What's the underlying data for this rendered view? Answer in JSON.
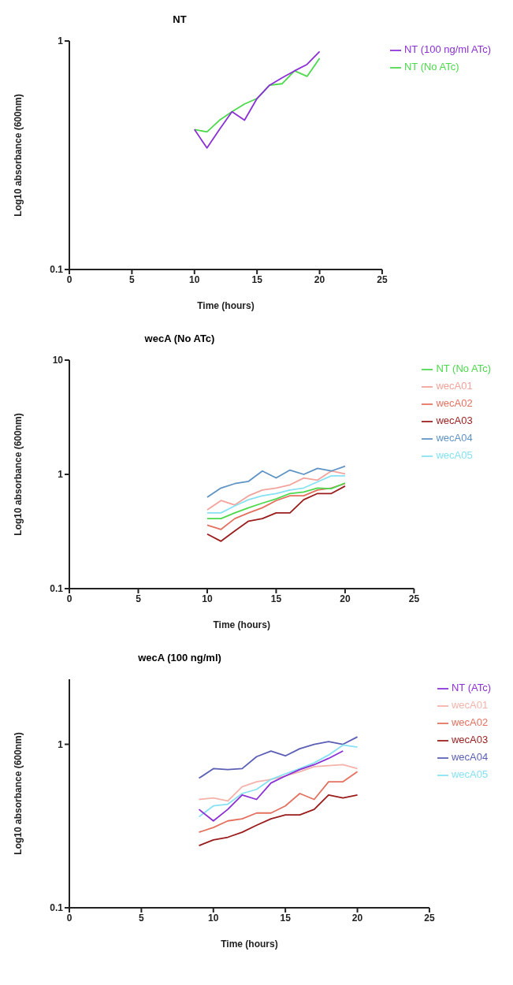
{
  "chart_data": [
    {
      "type": "line",
      "title": "NT",
      "xlabel": "Time (hours)",
      "ylabel": "Log10 absorbance (600nm)",
      "log": true,
      "grid": false,
      "legend": "top right",
      "x": [
        10,
        11,
        12,
        13,
        14,
        15,
        16,
        17,
        18,
        19,
        20
      ],
      "xlim": [
        0,
        25
      ],
      "xticks": [
        0,
        5,
        10,
        15,
        20,
        25
      ],
      "ylim": [
        0.1,
        1
      ],
      "yticks": [
        0.1,
        1
      ],
      "series": [
        {
          "name": "NT (No ATc)",
          "color": "#4cd94c",
          "values": [
            0.41,
            0.4,
            0.45,
            0.49,
            0.53,
            0.56,
            0.64,
            0.65,
            0.74,
            0.7,
            0.84
          ]
        },
        {
          "name": "NT (100 ng/ml ATc)",
          "color": "#8b2fd6",
          "values": [
            0.41,
            0.34,
            0.41,
            0.49,
            0.45,
            0.56,
            0.64,
            0.69,
            0.74,
            0.79,
            0.9
          ]
        }
      ]
    },
    {
      "type": "line",
      "title": "wecA (No ATc)",
      "xlabel": "Time (hours)",
      "ylabel": "Log10 absorbance (600nm)",
      "log": true,
      "grid": false,
      "legend": "top right",
      "x": [
        10,
        11,
        12,
        13,
        14,
        15,
        16,
        17,
        18,
        19,
        20
      ],
      "xlim": [
        0,
        25
      ],
      "xticks": [
        0,
        5,
        10,
        15,
        20,
        25
      ],
      "ylim": [
        0.1,
        10
      ],
      "yticks": [
        0.1,
        1,
        10
      ],
      "series": [
        {
          "name": "wecA01",
          "color": "#f2a39b",
          "values": [
            0.49,
            0.59,
            0.54,
            0.65,
            0.73,
            0.76,
            0.81,
            0.93,
            0.89,
            1.07,
            1.01
          ]
        },
        {
          "name": "wecA02",
          "color": "#e4705f",
          "values": [
            0.36,
            0.33,
            0.41,
            0.46,
            0.51,
            0.59,
            0.65,
            0.65,
            0.73,
            0.76,
            0.83
          ]
        },
        {
          "name": "wecA03",
          "color": "#9a1c1c",
          "values": [
            0.3,
            0.26,
            0.32,
            0.39,
            0.41,
            0.46,
            0.46,
            0.6,
            0.68,
            0.68,
            0.79
          ]
        },
        {
          "name": "wecA04",
          "color": "#5f93c4",
          "values": [
            0.63,
            0.76,
            0.83,
            0.87,
            1.07,
            0.93,
            1.09,
            1.0,
            1.13,
            1.07,
            1.18
          ]
        },
        {
          "name": "wecA05",
          "color": "#86e2f2",
          "values": [
            0.46,
            0.46,
            0.53,
            0.6,
            0.65,
            0.68,
            0.73,
            0.76,
            0.86,
            0.97,
            0.97
          ]
        },
        {
          "name": "NT (No ATc)",
          "color": "#4cd94c",
          "values": [
            0.41,
            0.41,
            0.46,
            0.51,
            0.56,
            0.61,
            0.68,
            0.7,
            0.76,
            0.75,
            0.84
          ]
        }
      ]
    },
    {
      "type": "line",
      "title": "wecA (100 ng/ml)",
      "xlabel": "Time (hours)",
      "ylabel": "Log10 absorbance (600nm)",
      "log": true,
      "grid": false,
      "legend": "top right",
      "x": [
        9,
        10,
        11,
        12,
        13,
        14,
        15,
        16,
        17,
        18,
        19,
        20
      ],
      "xlim": [
        0,
        25
      ],
      "xticks": [
        0,
        5,
        10,
        15,
        20,
        25
      ],
      "ylim": [
        0.1,
        2.5
      ],
      "yticks": [
        0.1,
        1
      ],
      "series": [
        {
          "name": "wecA01",
          "color": "#f4b3aa",
          "values": [
            0.46,
            0.47,
            0.45,
            0.55,
            0.59,
            0.61,
            0.64,
            0.68,
            0.73,
            0.74,
            0.75,
            0.71
          ]
        },
        {
          "name": "wecA02",
          "color": "#e4705f",
          "values": [
            0.29,
            0.31,
            0.34,
            0.35,
            0.38,
            0.38,
            0.42,
            0.5,
            0.46,
            0.59,
            0.59,
            0.68
          ]
        },
        {
          "name": "wecA03",
          "color": "#9a1c1c",
          "values": [
            0.24,
            0.26,
            0.27,
            0.29,
            0.32,
            0.35,
            0.37,
            0.37,
            0.4,
            0.49,
            0.47,
            0.49
          ]
        },
        {
          "name": "wecA04",
          "color": "#5a5fb5",
          "values": [
            0.62,
            0.71,
            0.7,
            0.71,
            0.84,
            0.91,
            0.85,
            0.94,
            1.0,
            1.04,
            1.0,
            1.11
          ]
        },
        {
          "name": "wecA05",
          "color": "#86e2f2",
          "values": [
            0.36,
            0.42,
            0.43,
            0.5,
            0.53,
            0.61,
            0.66,
            0.71,
            0.77,
            0.86,
            0.99,
            0.96
          ]
        },
        {
          "name": "NT (ATc)",
          "color": "#8b2fd6",
          "values": [
            0.4,
            0.34,
            0.4,
            0.49,
            0.46,
            0.58,
            0.64,
            0.7,
            0.75,
            0.82,
            0.91,
            null
          ]
        }
      ]
    }
  ]
}
